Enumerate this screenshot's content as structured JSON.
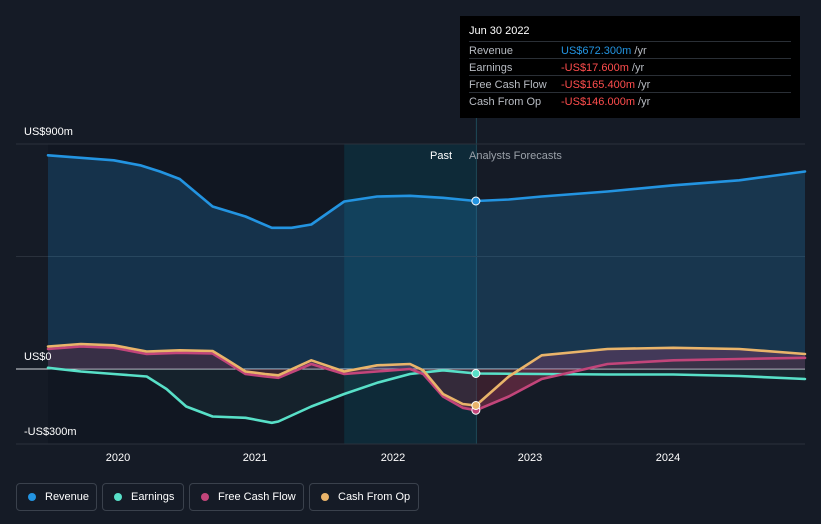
{
  "tooltip": {
    "date": "Jun 30 2022",
    "rows": [
      {
        "label": "Revenue",
        "value": "US$672.300m",
        "unit": " /yr",
        "color": "#2394e1"
      },
      {
        "label": "Earnings",
        "value": "-US$17.600m",
        "unit": " /yr",
        "color": "#ff4d4d"
      },
      {
        "label": "Free Cash Flow",
        "value": "-US$165.400m",
        "unit": " /yr",
        "color": "#ff4d4d"
      },
      {
        "label": "Cash From Op",
        "value": "-US$146.000m",
        "unit": " /yr",
        "color": "#ff4d4d"
      }
    ]
  },
  "regions": {
    "past": "Past",
    "forecast": "Analysts Forecasts"
  },
  "legend": [
    {
      "label": "Revenue",
      "color": "#2394e1"
    },
    {
      "label": "Earnings",
      "color": "#58e0c8"
    },
    {
      "label": "Free Cash Flow",
      "color": "#c2457a"
    },
    {
      "label": "Cash From Op",
      "color": "#e9b46a"
    }
  ],
  "chart_data": {
    "type": "line",
    "ytick_labels": [
      "US$900m",
      "US$0",
      "-US$300m"
    ],
    "xtick_labels": [
      "2020",
      "2021",
      "2022",
      "2023",
      "2024"
    ],
    "ylim": [
      -300,
      900
    ],
    "xlim": [
      2019.25,
      2025.0
    ],
    "grid": true,
    "highlight_x": 2022.5,
    "series": [
      {
        "name": "Revenue",
        "color": "#2394e1",
        "x": [
          2019.25,
          2019.5,
          2019.75,
          2019.95,
          2020.1,
          2020.25,
          2020.5,
          2020.75,
          2020.95,
          2021.1,
          2021.25,
          2021.5,
          2021.75,
          2022.0,
          2022.25,
          2022.5,
          2022.75,
          2023.0,
          2023.5,
          2024.0,
          2024.5,
          2025.0
        ],
        "y": [
          855,
          845,
          835,
          815,
          790,
          760,
          650,
          610,
          565,
          565,
          578,
          670,
          690,
          693,
          685,
          672,
          678,
          690,
          710,
          735,
          755,
          790
        ]
      },
      {
        "name": "Earnings",
        "color": "#58e0c8",
        "x": [
          2019.25,
          2019.5,
          2019.75,
          2020.0,
          2020.15,
          2020.3,
          2020.5,
          2020.75,
          2020.95,
          2021.0,
          2021.25,
          2021.5,
          2021.75,
          2022.0,
          2022.25,
          2022.5,
          2023.0,
          2023.5,
          2024.0,
          2024.5,
          2025.0
        ],
        "y": [
          5,
          -10,
          -20,
          -30,
          -80,
          -150,
          -190,
          -195,
          -215,
          -210,
          -150,
          -100,
          -55,
          -20,
          -5,
          -18,
          -20,
          -22,
          -22,
          -28,
          -40
        ]
      },
      {
        "name": "Free Cash Flow",
        "color": "#c2457a",
        "x": [
          2019.25,
          2019.5,
          2019.75,
          2020.0,
          2020.25,
          2020.5,
          2020.6,
          2020.75,
          2020.9,
          2021.0,
          2021.25,
          2021.5,
          2021.75,
          2022.0,
          2022.1,
          2022.25,
          2022.4,
          2022.5,
          2022.75,
          2023.0,
          2023.5,
          2024.0,
          2024.5,
          2025.0
        ],
        "y": [
          80,
          90,
          85,
          60,
          65,
          62,
          30,
          -20,
          -30,
          -35,
          20,
          -20,
          -10,
          0,
          -20,
          -110,
          -155,
          -165,
          -110,
          -40,
          20,
          35,
          40,
          45
        ]
      },
      {
        "name": "Cash From Op",
        "color": "#e9b46a",
        "x": [
          2019.25,
          2019.5,
          2019.75,
          2020.0,
          2020.25,
          2020.5,
          2020.6,
          2020.75,
          2020.9,
          2021.0,
          2021.25,
          2021.5,
          2021.75,
          2022.0,
          2022.1,
          2022.25,
          2022.4,
          2022.5,
          2022.75,
          2023.0,
          2023.5,
          2024.0,
          2024.5,
          2025.0
        ],
        "y": [
          90,
          100,
          95,
          70,
          75,
          72,
          40,
          -10,
          -20,
          -25,
          35,
          -10,
          15,
          20,
          -5,
          -100,
          -140,
          -146,
          -30,
          55,
          80,
          85,
          80,
          60
        ]
      }
    ]
  }
}
